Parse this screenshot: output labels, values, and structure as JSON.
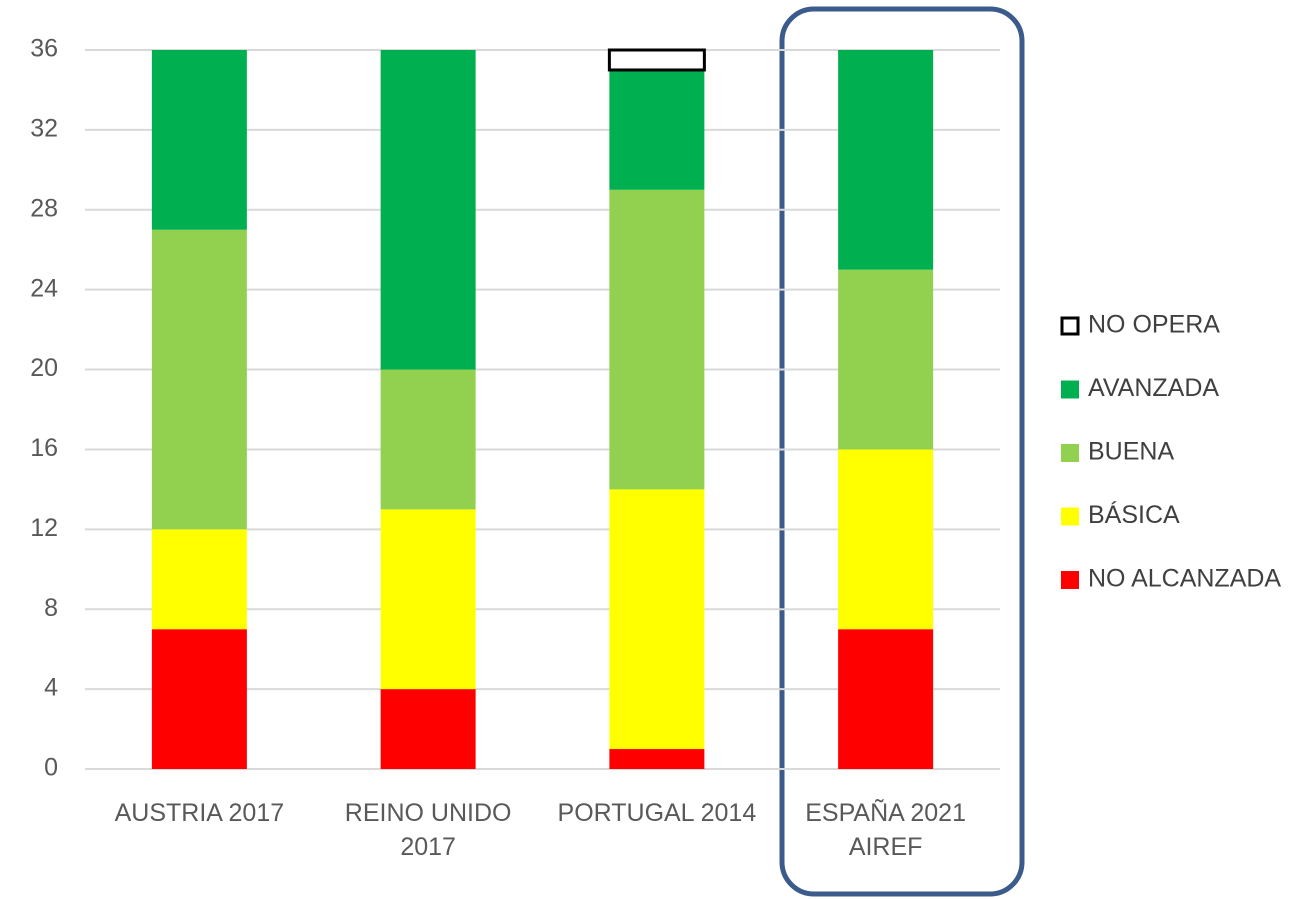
{
  "chart_data": {
    "type": "bar",
    "stacked": true,
    "categories": [
      "AUSTRIA 2017",
      "REINO UNIDO 2017",
      "PORTUGAL 2014",
      "ESPAÑA 2021 AIREF"
    ],
    "series": [
      {
        "name": "NO ALCANZADA",
        "color": "#ff0000",
        "values": [
          7,
          4,
          1,
          7
        ]
      },
      {
        "name": "BÁSICA",
        "color": "#ffff00",
        "values": [
          5,
          9,
          13,
          9
        ]
      },
      {
        "name": "BUENA",
        "color": "#92d050",
        "values": [
          15,
          7,
          15,
          9
        ]
      },
      {
        "name": "AVANZADA",
        "color": "#00b050",
        "values": [
          9,
          16,
          6,
          11
        ]
      },
      {
        "name": "NO OPERA",
        "color": "#ffffff",
        "values": [
          0,
          0,
          1,
          0
        ]
      }
    ],
    "ylim": [
      0,
      36
    ],
    "yticks": [
      0,
      4,
      8,
      12,
      16,
      20,
      24,
      28,
      32,
      36
    ],
    "grid": true
  }
}
